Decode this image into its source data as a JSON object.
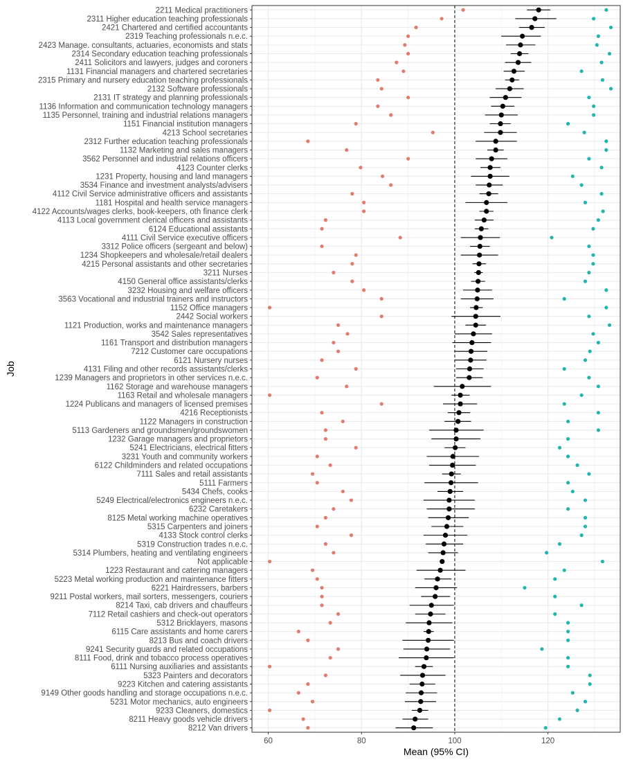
{
  "chart_data": {
    "type": "scatter",
    "title": "",
    "xlabel": "Mean (95% CI)",
    "ylabel": "Job",
    "xlim": [
      56.5,
      135.5
    ],
    "xticks": [
      60,
      80,
      100,
      120
    ],
    "reference_line": 100,
    "grid": true,
    "legend": "none",
    "colors": {
      "mean": "#000000",
      "low": "#e07b6e",
      "high": "#22b5ad",
      "grid": "#ebebeb",
      "panel_border": "#333333"
    },
    "rows": [
      {
        "job": "2211 Medical practitioners",
        "mean": 118,
        "ci_low": 115.5,
        "ci_high": 120.5,
        "low": 101.8,
        "high": 132.5
      },
      {
        "job": "2311 Higher education teaching professionals",
        "mean": 117.2,
        "ci_low": 113,
        "ci_high": 121.8,
        "low": 97.2,
        "high": 129.8
      },
      {
        "job": "2421 Chartered and certified accountants",
        "mean": 116.5,
        "ci_low": 113.8,
        "ci_high": 119.3,
        "low": 91.7,
        "high": 133.5
      },
      {
        "job": "2319 Teaching professionals n.e.c.",
        "mean": 114.5,
        "ci_low": 110,
        "ci_high": 118.5,
        "low": 90,
        "high": 130.8
      },
      {
        "job": "2423 Manage. consultants, actuaries, economists and stats",
        "mean": 114.1,
        "ci_low": 111,
        "ci_high": 117.3,
        "low": 89.3,
        "high": 130.5
      },
      {
        "job": "2314 Secondary education teaching  professionals",
        "mean": 113.9,
        "ci_low": 112,
        "ci_high": 115.8,
        "low": 90,
        "high": 133.2
      },
      {
        "job": "2411 Solicitors and lawyers, judges and coroners",
        "mean": 113.6,
        "ci_low": 110.8,
        "ci_high": 116.4,
        "low": 87.5,
        "high": 131.5
      },
      {
        "job": "1131 Financial managers and chartered secretaries",
        "mean": 112.7,
        "ci_low": 110.5,
        "ci_high": 115,
        "low": 89,
        "high": 127.2
      },
      {
        "job": "2315 Primary and nursery education teaching professionals",
        "mean": 112.3,
        "ci_low": 110.8,
        "ci_high": 113.8,
        "low": 83.5,
        "high": 131.7
      },
      {
        "job": "2132 Software professionals",
        "mean": 111.8,
        "ci_low": 108.8,
        "ci_high": 114.8,
        "low": 84.3,
        "high": 133.5
      },
      {
        "job": "2131 IT strategy and planning professionals",
        "mean": 110.9,
        "ci_low": 107.5,
        "ci_high": 114.3,
        "low": 90,
        "high": 128.8
      },
      {
        "job": "1136 Information and communication technology managers",
        "mean": 110.3,
        "ci_low": 107.8,
        "ci_high": 112.8,
        "low": 83.5,
        "high": 129.8
      },
      {
        "job": "1135 Personnel, training and industrial relations managers",
        "mean": 110,
        "ci_low": 106.5,
        "ci_high": 113.5,
        "low": 86.3,
        "high": 129.8
      },
      {
        "job": "1151 Financial institution managers",
        "mean": 109.8,
        "ci_low": 107.5,
        "ci_high": 112,
        "low": 78.8,
        "high": 124.3
      },
      {
        "job": "4213 School secretaries",
        "mean": 109.8,
        "ci_low": 106.3,
        "ci_high": 113.3,
        "low": 95.3,
        "high": 127.8
      },
      {
        "job": "2312 Further education teaching professionals",
        "mean": 108.8,
        "ci_low": 104.5,
        "ci_high": 113.3,
        "low": 68.5,
        "high": 132.5
      },
      {
        "job": "1132 Marketing and sales managers",
        "mean": 108.8,
        "ci_low": 107,
        "ci_high": 110.5,
        "low": 76.8,
        "high": 132.5
      },
      {
        "job": "3562 Personnel and industrial relations officers",
        "mean": 107.9,
        "ci_low": 104.5,
        "ci_high": 111.3,
        "low": 90,
        "high": 128.8
      },
      {
        "job": "4123 Counter clerks",
        "mean": 107.6,
        "ci_low": 105.5,
        "ci_high": 109.8,
        "low": 79.8,
        "high": 131.5
      },
      {
        "job": "1231 Property, housing and land managers",
        "mean": 107.6,
        "ci_low": 103.5,
        "ci_high": 111.7,
        "low": 84.5,
        "high": 125.3
      },
      {
        "job": "3534 Finance and investment analysts/advisers",
        "mean": 107.4,
        "ci_low": 104.5,
        "ci_high": 110.3,
        "low": 86.3,
        "high": 127.2
      },
      {
        "job": "4112 Civil Service administrative officers and assistants",
        "mean": 107.3,
        "ci_low": 105.3,
        "ci_high": 109.3,
        "low": 78,
        "high": 131.5
      },
      {
        "job": "1181 Hospital and health service managers",
        "mean": 106.8,
        "ci_low": 102.3,
        "ci_high": 111.3,
        "low": 80.5,
        "high": 128
      },
      {
        "job": "4122 Accounts/wages clerks, book-keepers, oth finance clerk",
        "mean": 106.8,
        "ci_low": 105.3,
        "ci_high": 108.3,
        "low": 80.5,
        "high": 131.8
      },
      {
        "job": "4113 Local government clerical officers and assistants",
        "mean": 106.3,
        "ci_low": 104.3,
        "ci_high": 108.3,
        "low": 72.3,
        "high": 130.8
      },
      {
        "job": "6124 Educational assistants",
        "mean": 105.7,
        "ci_low": 104.3,
        "ci_high": 107.2,
        "low": 71.5,
        "high": 129.7
      },
      {
        "job": "4111 Civil Service executive officers",
        "mean": 105.5,
        "ci_low": 101.3,
        "ci_high": 109.7,
        "low": 88.3,
        "high": 120.8
      },
      {
        "job": "3312 Police officers (sergeant and below)",
        "mean": 105.4,
        "ci_low": 103.3,
        "ci_high": 107.5,
        "low": 71.5,
        "high": 128.8
      },
      {
        "job": "1234 Shopkeepers and wholesale/retail dealers",
        "mean": 105.3,
        "ci_low": 101.3,
        "ci_high": 109.3,
        "low": 78.8,
        "high": 129.7
      },
      {
        "job": "4215 Personal assistants and other secretaries",
        "mean": 105.2,
        "ci_low": 103.8,
        "ci_high": 106.7,
        "low": 78,
        "high": 129.7
      },
      {
        "job": "3211 Nurses",
        "mean": 105.1,
        "ci_low": 104.2,
        "ci_high": 106,
        "low": 74,
        "high": 128.8
      },
      {
        "job": "4150 General office assistants/clerks",
        "mean": 105,
        "ci_low": 103.5,
        "ci_high": 106.5,
        "low": 78,
        "high": 128
      },
      {
        "job": "3232 Housing and welfare officers",
        "mean": 104.9,
        "ci_low": 101.8,
        "ci_high": 108,
        "low": 80.5,
        "high": 132.5
      },
      {
        "job": "3563 Vocational and industrial trainers and instructors",
        "mean": 104.8,
        "ci_low": 101.3,
        "ci_high": 108.3,
        "low": 84.3,
        "high": 123.5
      },
      {
        "job": "1152 Office managers",
        "mean": 104.6,
        "ci_low": 103.3,
        "ci_high": 106,
        "low": 60.3,
        "high": 132.5
      },
      {
        "job": "2442 Social workers",
        "mean": 104.5,
        "ci_low": 99.3,
        "ci_high": 109.8,
        "low": 84.3,
        "high": 128.8
      },
      {
        "job": "1121 Production, works and maintenance managers",
        "mean": 104.5,
        "ci_low": 102.3,
        "ci_high": 106.7,
        "low": 75,
        "high": 133.2
      },
      {
        "job": "3542 Sales representatives",
        "mean": 104,
        "ci_low": 100,
        "ci_high": 108,
        "low": 77,
        "high": 129.7
      },
      {
        "job": "1161 Transport and distribution managers",
        "mean": 103.7,
        "ci_low": 99.5,
        "ci_high": 107.8,
        "low": 74,
        "high": 130.8
      },
      {
        "job": "7212 Customer care occupations",
        "mean": 103.5,
        "ci_low": 100,
        "ci_high": 107,
        "low": 75,
        "high": 129
      },
      {
        "job": "6121 Nursery nurses",
        "mean": 103.4,
        "ci_low": 100,
        "ci_high": 106.8,
        "low": 71.5,
        "high": 128
      },
      {
        "job": "4131 Filing and other records assistants/clerks",
        "mean": 103.2,
        "ci_low": 100.3,
        "ci_high": 106.2,
        "low": 78.8,
        "high": 123.5
      },
      {
        "job": "1239 Managers and proprietors in other services n.e.c.",
        "mean": 103.1,
        "ci_low": 100.3,
        "ci_high": 106,
        "low": 70.5,
        "high": 128.8
      },
      {
        "job": "1162 Storage and warehouse managers",
        "mean": 101.6,
        "ci_low": 95.5,
        "ci_high": 107.8,
        "low": 76.8,
        "high": 130.8
      },
      {
        "job": "1163 Retail and wholesale managers",
        "mean": 101.2,
        "ci_low": 99.3,
        "ci_high": 103.2,
        "low": 60.3,
        "high": 127.2
      },
      {
        "job": "1224 Publicans and managers of licensed premises",
        "mean": 101.2,
        "ci_low": 97.5,
        "ci_high": 104.8,
        "low": 84.3,
        "high": 123.5
      },
      {
        "job": "4216 Receptionists",
        "mean": 100.9,
        "ci_low": 98.5,
        "ci_high": 103.3,
        "low": 71.5,
        "high": 130.8
      },
      {
        "job": "1122 Managers in construction",
        "mean": 100.7,
        "ci_low": 97.8,
        "ci_high": 103.5,
        "low": 76,
        "high": 124.3
      },
      {
        "job": "5113 Gardeners and groundsmen/groundswomen",
        "mean": 100.3,
        "ci_low": 94.5,
        "ci_high": 106.2,
        "low": 72.3,
        "high": 130.8
      },
      {
        "job": "1232 Garage managers and proprietors",
        "mean": 100.3,
        "ci_low": 95,
        "ci_high": 105.5,
        "low": 72.3,
        "high": 124.3
      },
      {
        "job": "5241 Electricians, electrical fitters",
        "mean": 100.1,
        "ci_low": 97.8,
        "ci_high": 102.3,
        "low": 78.8,
        "high": 122.5
      },
      {
        "job": "3231 Youth and community workers",
        "mean": 99.6,
        "ci_low": 94,
        "ci_high": 105.2,
        "low": 70.5,
        "high": 124.3
      },
      {
        "job": "6122 Childminders and related occupations",
        "mean": 99.5,
        "ci_low": 94.5,
        "ci_high": 104.5,
        "low": 73.3,
        "high": 126.3
      },
      {
        "job": "7111 Sales and retail assistants",
        "mean": 99.3,
        "ci_low": 97.3,
        "ci_high": 101.3,
        "low": 69.5,
        "high": 128.8
      },
      {
        "job": "5111 Farmers",
        "mean": 99.2,
        "ci_low": 93.5,
        "ci_high": 105,
        "low": 70.5,
        "high": 124.3
      },
      {
        "job": "5434 Chefs, cooks",
        "mean": 99,
        "ci_low": 96.3,
        "ci_high": 101.8,
        "low": 76,
        "high": 125.3
      },
      {
        "job": "5249 Electrical/electronics engineers n.e.c.",
        "mean": 98.8,
        "ci_low": 93.3,
        "ci_high": 104.3,
        "low": 77.8,
        "high": 128
      },
      {
        "job": "6232 Caretakers",
        "mean": 98.8,
        "ci_low": 94,
        "ci_high": 104.3,
        "low": 74,
        "high": 124.3
      },
      {
        "job": "8125 Metal working machine operatives",
        "mean": 98.6,
        "ci_low": 94.3,
        "ci_high": 103,
        "low": 72.3,
        "high": 128
      },
      {
        "job": "5315 Carpenters and joiners",
        "mean": 98.3,
        "ci_low": 95,
        "ci_high": 101.8,
        "low": 70.5,
        "high": 128
      },
      {
        "job": "4133 Stock control clerks",
        "mean": 98,
        "ci_low": 93.3,
        "ci_high": 102.7,
        "low": 77.8,
        "high": 127.2
      },
      {
        "job": "5319 Construction trades n.e.c.",
        "mean": 97.7,
        "ci_low": 93.8,
        "ci_high": 101.8,
        "low": 72.3,
        "high": 122.5
      },
      {
        "job": "5314 Plumbers, heating and ventilating engineers",
        "mean": 97.5,
        "ci_low": 94.3,
        "ci_high": 100.7,
        "low": 74,
        "high": 119.7
      },
      {
        "job": "Not applicable",
        "mean": 97.3,
        "ci_low": 96.8,
        "ci_high": 97.8,
        "low": 60.3,
        "high": 131.7
      },
      {
        "job": "1223 Restaurant and catering managers",
        "mean": 96.9,
        "ci_low": 91.8,
        "ci_high": 102.3,
        "low": 69.5,
        "high": 123.5
      },
      {
        "job": "5223 Metal working production and maintenance fitters",
        "mean": 96.3,
        "ci_low": 93.5,
        "ci_high": 99.3,
        "low": 70.5,
        "high": 121.5
      },
      {
        "job": "6221 Hairdressers, barbers",
        "mean": 96,
        "ci_low": 91.5,
        "ci_high": 100.5,
        "low": 71.5,
        "high": 115
      },
      {
        "job": "9211 Postal workers, mail sorters, messengers, couriers",
        "mean": 95.8,
        "ci_low": 92.8,
        "ci_high": 99,
        "low": 71.5,
        "high": 121.5
      },
      {
        "job": "8214 Taxi, cab drivers and chauffeurs",
        "mean": 95,
        "ci_low": 90.3,
        "ci_high": 99.8,
        "low": 71.5,
        "high": 127.2
      },
      {
        "job": "7112 Retail cashiers and check-out operators",
        "mean": 94.8,
        "ci_low": 91.5,
        "ci_high": 98,
        "low": 75,
        "high": 121.5
      },
      {
        "job": "5312 Bricklayers, masons",
        "mean": 94.5,
        "ci_low": 89.5,
        "ci_high": 99.5,
        "low": 73.3,
        "high": 124.3
      },
      {
        "job": "6115 Care assistants and home carers",
        "mean": 94.4,
        "ci_low": 93.3,
        "ci_high": 95.5,
        "low": 66.5,
        "high": 124.3
      },
      {
        "job": "8213 Bus and coach drivers",
        "mean": 94.3,
        "ci_low": 88.8,
        "ci_high": 99.8,
        "low": 68.5,
        "high": 124.3
      },
      {
        "job": "9241 Security guards and related occupations",
        "mean": 94,
        "ci_low": 89,
        "ci_high": 99,
        "low": 75,
        "high": 118.7
      },
      {
        "job": "8111 Food, drink and tobacco process operatives",
        "mean": 93.9,
        "ci_low": 88,
        "ci_high": 99.8,
        "low": 73.3,
        "high": 124.3
      },
      {
        "job": "6111 Nursing auxiliaries and assistants",
        "mean": 93.4,
        "ci_low": 91.5,
        "ci_high": 95.3,
        "low": 60.3,
        "high": 124.3
      },
      {
        "job": "5323 Painters and decorators",
        "mean": 93.1,
        "ci_low": 88.3,
        "ci_high": 98,
        "low": 72.3,
        "high": 129
      },
      {
        "job": "9223 Kitchen and catering assistants",
        "mean": 93,
        "ci_low": 90.3,
        "ci_high": 95.8,
        "low": 68.5,
        "high": 129
      },
      {
        "job": "9149 Other goods handling and storage occupations n.e.c.",
        "mean": 92.8,
        "ci_low": 89.5,
        "ci_high": 96.2,
        "low": 66.5,
        "high": 125.3
      },
      {
        "job": "5231 Motor mechanics, auto engineers",
        "mean": 92.7,
        "ci_low": 89.3,
        "ci_high": 96,
        "low": 69.5,
        "high": 128
      },
      {
        "job": "9233 Cleaners, domestics",
        "mean": 92.5,
        "ci_low": 90.8,
        "ci_high": 94.3,
        "low": 60.3,
        "high": 126.3
      },
      {
        "job": "8211 Heavy goods vehicle drivers",
        "mean": 91.5,
        "ci_low": 88.8,
        "ci_high": 94.3,
        "low": 67.5,
        "high": 122.5
      },
      {
        "job": "8212 Van drivers",
        "mean": 91.2,
        "ci_low": 87.3,
        "ci_high": 95.3,
        "low": 68.5,
        "high": 119.5
      }
    ]
  }
}
